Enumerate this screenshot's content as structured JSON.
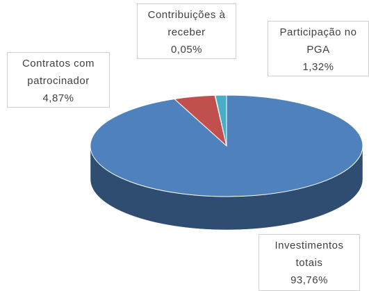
{
  "chart_data": {
    "type": "pie3d",
    "categories": [
      "Investimentos totais",
      "Contratos com patrocinador",
      "Contribuições à receber",
      "Participação no PGA"
    ],
    "values": [
      93.76,
      4.87,
      0.05,
      1.32
    ],
    "value_labels": [
      "93,76%",
      "4,87%",
      "0,05%",
      "1,32%"
    ],
    "colors": [
      "#4f81bd",
      "#c0504d",
      "#9bbb59",
      "#4bacc6"
    ]
  }
}
